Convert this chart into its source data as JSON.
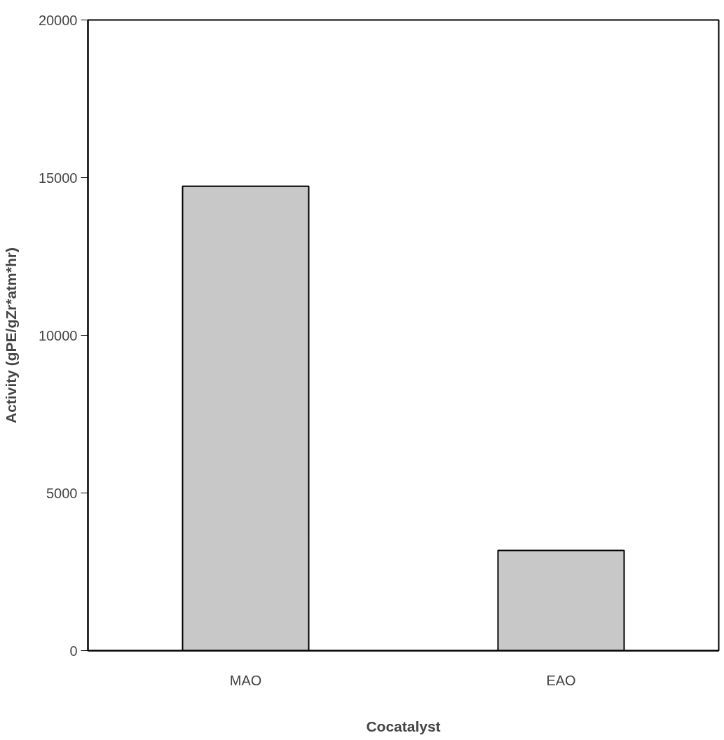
{
  "chart_data": {
    "type": "bar",
    "xlabel": "Cocatalyst",
    "ylabel": "Activity (gPE/gZr*atm*hr)",
    "categories": [
      "MAO",
      "EAO"
    ],
    "values": [
      14730,
      3180
    ],
    "color": "#c8c8c8",
    "ylim": [
      0,
      20000
    ],
    "yticks": [
      0,
      5000,
      10000,
      15000,
      20000
    ],
    "grid": false
  }
}
